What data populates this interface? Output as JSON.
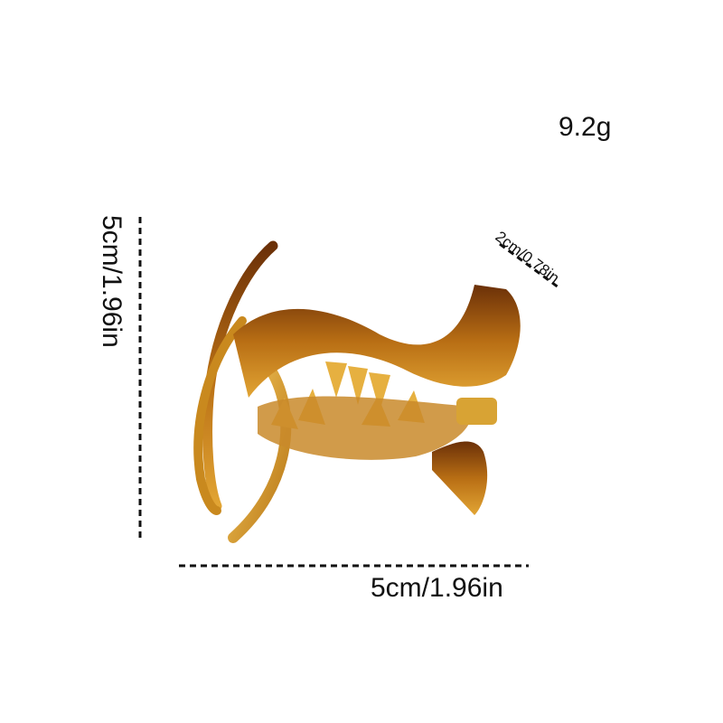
{
  "product": {
    "weight": "9.2g",
    "width": "5cm/1.96in",
    "height": "5cm/1.96in",
    "depth": "2cm/0.78in"
  },
  "colors": {
    "tortoise_dark": "#5a2a08",
    "tortoise_amber": "#c98a1c",
    "gold": "#e0a82a"
  }
}
